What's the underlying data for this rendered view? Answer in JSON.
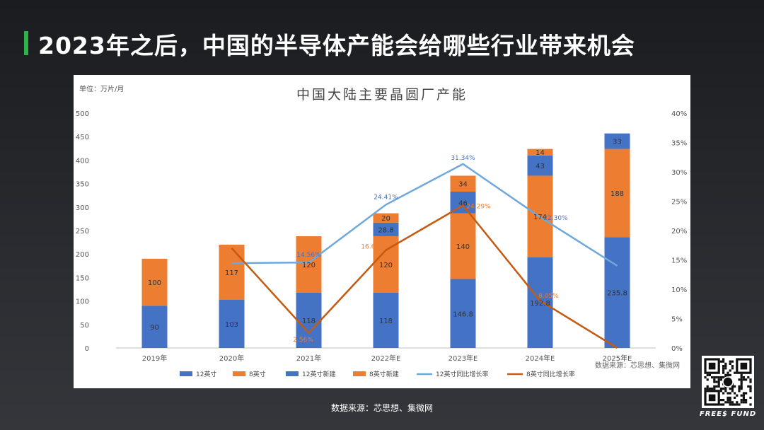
{
  "slide": {
    "title": "2023年之后，中国的半导体产能会给哪些行业带来机会",
    "footer_source": "数据来源：芯思想、集微网",
    "brand": "FREE$ FUND",
    "accent_color": "#2fb24a"
  },
  "chart_data": {
    "type": "bar",
    "title": "中国大陆主要晶圆厂产能",
    "unit_label": "单位：万片/月",
    "source_note": "数据来源：芯思想、集微网",
    "categories": [
      "2019年",
      "2020年",
      "2021年",
      "2022年E",
      "2023年E",
      "2024年E",
      "2025年E"
    ],
    "y_left": {
      "min": 0,
      "max": 500,
      "ticks": [
        "0",
        "50",
        "100",
        "150",
        "200",
        "250",
        "300",
        "350",
        "400",
        "450",
        "500"
      ]
    },
    "y_right": {
      "min": 0,
      "max": 40,
      "ticks": [
        "0%",
        "5%",
        "10%",
        "15%",
        "20%",
        "25%",
        "30%",
        "35%",
        "40%"
      ]
    },
    "stacked_series": [
      {
        "name": "12英寸",
        "color": "#4472c4",
        "values": [
          90,
          103,
          118,
          118,
          146.8,
          192.8,
          235.8
        ],
        "labels": [
          "90",
          "103",
          "118",
          "118",
          "146.8",
          "192.8",
          "235.8"
        ]
      },
      {
        "name": "8英寸",
        "color": "#ed7d31",
        "values": [
          100,
          117,
          120,
          120,
          140,
          174,
          188
        ],
        "labels": [
          "100",
          "117",
          "120",
          "120",
          "140",
          "174",
          "188"
        ]
      },
      {
        "name": "12英寸新建",
        "color": "#4472c4",
        "values": [
          0,
          0,
          0,
          28.8,
          46,
          43,
          33
        ],
        "labels": [
          "",
          "",
          "",
          "28.8",
          "46",
          "43",
          "33"
        ]
      },
      {
        "name": "8英寸新建",
        "color": "#ed7d31",
        "values": [
          0,
          0,
          0,
          20,
          34,
          14,
          0
        ],
        "labels": [
          "",
          "",
          "",
          "20",
          "34",
          "14",
          ""
        ]
      }
    ],
    "line_series": [
      {
        "name": "12英寸同比增长率",
        "color": "#6fa8dc",
        "values": [
          null,
          14.44,
          14.56,
          24.41,
          31.34,
          22.3,
          14.0
        ],
        "labels": [
          "",
          "",
          "14.56%",
          "24.41%",
          "31.34%",
          "22.30%",
          ""
        ]
      },
      {
        "name": "8英寸同比增长率",
        "color": "#c55a11",
        "values": [
          null,
          17.0,
          2.56,
          16.67,
          24.29,
          8.05,
          0
        ],
        "labels": [
          "",
          "",
          "2.56%",
          "16.67%",
          "24.29%",
          "8.05%",
          ""
        ]
      }
    ]
  }
}
